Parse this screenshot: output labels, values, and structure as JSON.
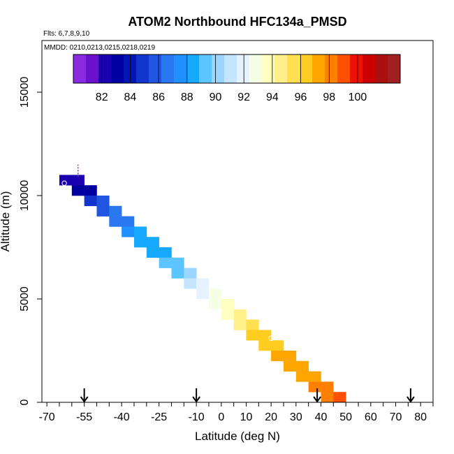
{
  "chart_data": {
    "type": "heatmap",
    "title": "ATOM2 Northbound HFC134a_PMSD",
    "flights_note": "Flts: 6,7,8,9,10",
    "dates_note": "MMDD: 0210,0213,0215,0218,0219",
    "xlabel": "Latitude (deg N)",
    "ylabel": "Altitude (m)",
    "xlim": [
      -72,
      85
    ],
    "ylim": [
      0,
      17500
    ],
    "x_ticks": [
      -70,
      -55,
      -40,
      -25,
      -10,
      0,
      10,
      20,
      30,
      40,
      50,
      60,
      70,
      80
    ],
    "x_tick_labels": [
      "-70",
      "-55",
      "-40",
      "-25",
      "-10",
      "0",
      "10",
      "20",
      "30",
      "40",
      "50",
      "60",
      "70",
      "80"
    ],
    "y_ticks": [
      0,
      5000,
      10000,
      15000
    ],
    "y_tick_labels": [
      "0",
      "5000",
      "10000",
      "15000"
    ],
    "colorbar": {
      "min": 80,
      "max": 103,
      "tick_values": [
        82,
        84,
        86,
        88,
        90,
        92,
        94,
        96,
        98,
        100
      ],
      "tick_labels": [
        "82",
        "84",
        "86",
        "88",
        "90",
        "92",
        "94",
        "96",
        "98",
        "100"
      ],
      "colors": [
        "#8a2be2",
        "#6a11cb",
        "#1a00b0",
        "#0000a0",
        "#0016b4",
        "#1034cc",
        "#1f55e0",
        "#2a78f0",
        "#1e90ff",
        "#16aaff",
        "#5cc4ff",
        "#9ad6ff",
        "#c4e4ff",
        "#e6f2ff",
        "#f6ffe6",
        "#ffffc0",
        "#fff08a",
        "#ffe050",
        "#ffcc20",
        "#ffa500",
        "#ff8000",
        "#ff5000",
        "#ee1000",
        "#cc0000",
        "#aa1010",
        "#a02020"
      ]
    },
    "cells": [
      {
        "lat": -62.5,
        "alt": 10500,
        "value": 82.5
      },
      {
        "lat": -57.5,
        "alt": 10500,
        "value": 82.5
      },
      {
        "lat": -57.5,
        "alt": 10000,
        "value": 83.0
      },
      {
        "lat": -52.5,
        "alt": 10000,
        "value": 83.5
      },
      {
        "lat": -52.5,
        "alt": 9500,
        "value": 84.5
      },
      {
        "lat": -47.5,
        "alt": 9500,
        "value": 85.5
      },
      {
        "lat": -47.5,
        "alt": 9000,
        "value": 85.5
      },
      {
        "lat": -42.5,
        "alt": 9000,
        "value": 86.5
      },
      {
        "lat": -42.5,
        "alt": 8500,
        "value": 87.0
      },
      {
        "lat": -37.5,
        "alt": 8500,
        "value": 87.0
      },
      {
        "lat": -37.5,
        "alt": 8000,
        "value": 87.5
      },
      {
        "lat": -32.5,
        "alt": 8000,
        "value": 88.0
      },
      {
        "lat": -32.5,
        "alt": 7500,
        "value": 88.0
      },
      {
        "lat": -27.5,
        "alt": 7500,
        "value": 88.5
      },
      {
        "lat": -27.5,
        "alt": 7000,
        "value": 88.5
      },
      {
        "lat": -22.5,
        "alt": 7000,
        "value": 88.5
      },
      {
        "lat": -22.5,
        "alt": 6500,
        "value": 89.0
      },
      {
        "lat": -17.5,
        "alt": 6500,
        "value": 89.5
      },
      {
        "lat": -17.5,
        "alt": 6000,
        "value": 89.5
      },
      {
        "lat": -12.5,
        "alt": 6000,
        "value": 90.5
      },
      {
        "lat": -12.5,
        "alt": 5500,
        "value": 91.0
      },
      {
        "lat": -7.5,
        "alt": 5500,
        "value": 91.5
      },
      {
        "lat": -7.5,
        "alt": 5000,
        "value": 92.0
      },
      {
        "lat": -2.5,
        "alt": 5000,
        "value": 92.5
      },
      {
        "lat": -2.5,
        "alt": 4500,
        "value": 93.0
      },
      {
        "lat": 2.5,
        "alt": 4500,
        "value": 93.5
      },
      {
        "lat": 2.5,
        "alt": 4000,
        "value": 94.0
      },
      {
        "lat": 7.5,
        "alt": 4000,
        "value": 94.5
      },
      {
        "lat": 7.5,
        "alt": 3500,
        "value": 95.0
      },
      {
        "lat": 12.5,
        "alt": 3500,
        "value": 95.5
      },
      {
        "lat": 12.5,
        "alt": 3000,
        "value": 96.0
      },
      {
        "lat": 17.5,
        "alt": 3000,
        "value": 96.0
      },
      {
        "lat": 17.5,
        "alt": 2500,
        "value": 96.5
      },
      {
        "lat": 22.5,
        "alt": 2500,
        "value": 96.5
      },
      {
        "lat": 22.5,
        "alt": 2000,
        "value": 97.0
      },
      {
        "lat": 27.5,
        "alt": 2000,
        "value": 97.0
      },
      {
        "lat": 27.5,
        "alt": 1500,
        "value": 97.5
      },
      {
        "lat": 32.5,
        "alt": 1500,
        "value": 97.5
      },
      {
        "lat": 32.5,
        "alt": 1000,
        "value": 97.5
      },
      {
        "lat": 37.5,
        "alt": 1000,
        "value": 97.5
      },
      {
        "lat": 37.5,
        "alt": 500,
        "value": 98.0
      },
      {
        "lat": 42.5,
        "alt": 500,
        "value": 98.0
      },
      {
        "lat": 42.5,
        "alt": 0,
        "value": 98.5
      },
      {
        "lat": 47.5,
        "alt": 0,
        "value": 99.0
      }
    ],
    "arrows_lat": [
      -55,
      -10,
      38.5,
      76
    ],
    "open_circles": [
      {
        "lat": -63,
        "alt": 10600
      },
      {
        "lat": 20,
        "alt": 3100
      }
    ],
    "dashed_marks": [
      {
        "lat": -57.5,
        "alt_from": 10900,
        "alt_to": 11500,
        "color": "#7b2cc0"
      },
      {
        "lat": 46.5,
        "alt_from": 300,
        "alt_to": 550,
        "color": "#ff7000"
      }
    ]
  }
}
